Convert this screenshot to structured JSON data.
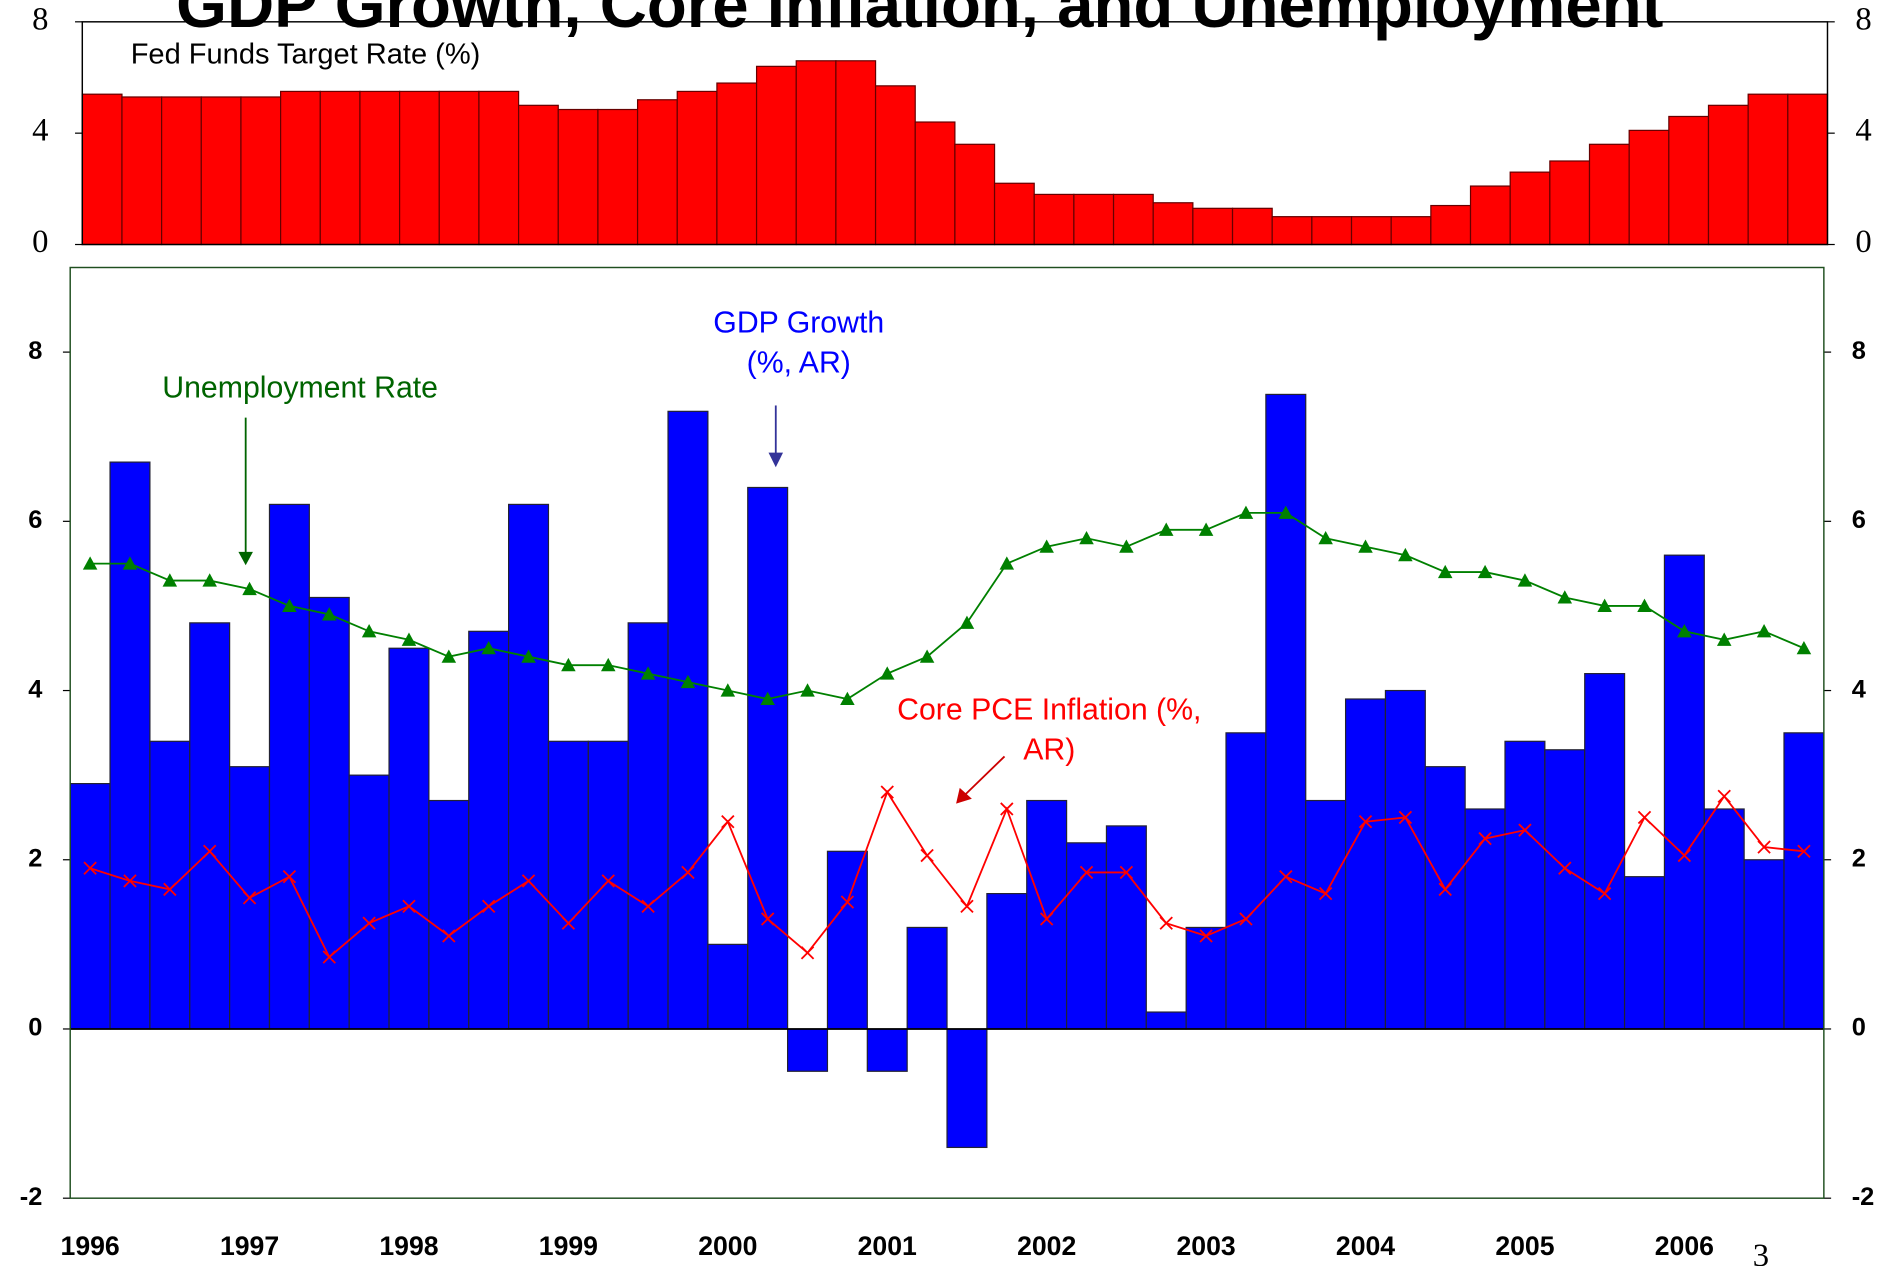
{
  "title": "GDP Growth, Core Inflation, and Unemployment",
  "page_number": "3",
  "chart_data": [
    {
      "type": "bar",
      "title": "Fed Funds Target Rate (%)",
      "color": "#ff0000",
      "values": [
        5.4,
        5.3,
        5.3,
        5.3,
        5.3,
        5.5,
        5.5,
        5.5,
        5.5,
        5.5,
        5.5,
        5.0,
        4.85,
        4.85,
        5.2,
        5.5,
        5.8,
        6.4,
        6.6,
        6.6,
        5.7,
        4.4,
        3.6,
        2.2,
        1.8,
        1.8,
        1.8,
        1.5,
        1.3,
        1.3,
        1.0,
        1.0,
        1.0,
        1.0,
        1.4,
        2.1,
        2.6,
        3.0,
        3.6,
        4.1,
        4.6,
        5.0,
        5.4,
        5.4
      ],
      "ylim": [
        0,
        8
      ],
      "yticks": [
        0,
        4,
        8
      ],
      "y2ticks": [
        0,
        4,
        8
      ]
    },
    {
      "type": "combo",
      "categories": [
        "1996",
        null,
        null,
        null,
        "1997",
        null,
        null,
        null,
        "1998",
        null,
        null,
        null,
        "1999",
        null,
        null,
        null,
        "2000",
        null,
        null,
        null,
        "2001",
        null,
        null,
        null,
        "2002",
        null,
        null,
        null,
        "2003",
        null,
        null,
        null,
        "2004",
        null,
        null,
        null,
        "2005",
        null,
        null,
        null,
        "2006",
        null,
        null,
        null
      ],
      "ylim": [
        -2,
        9
      ],
      "yticks": [
        -2,
        0,
        2,
        4,
        6,
        8
      ],
      "y2ticks": [
        -2,
        0,
        2,
        4,
        6,
        8
      ],
      "series": [
        {
          "type": "bar",
          "label": [
            "GDP Growth",
            "(%, AR)"
          ],
          "color": "#0000ff",
          "values": [
            2.9,
            6.7,
            3.4,
            4.8,
            3.1,
            6.2,
            5.1,
            3.0,
            4.5,
            2.7,
            4.7,
            6.2,
            3.4,
            3.4,
            4.8,
            7.3,
            1.0,
            6.4,
            -0.5,
            2.1,
            -0.5,
            1.2,
            -1.4,
            1.6,
            2.7,
            2.2,
            2.4,
            0.2,
            1.2,
            3.5,
            7.5,
            2.7,
            3.9,
            4.0,
            3.1,
            2.6,
            3.4,
            3.3,
            4.2,
            1.8,
            5.6,
            2.6,
            2.0,
            3.5
          ]
        },
        {
          "type": "line",
          "marker": "triangle",
          "label": [
            "Unemployment Rate"
          ],
          "color": "#008000",
          "values": [
            5.5,
            5.5,
            5.3,
            5.3,
            5.2,
            5.0,
            4.9,
            4.7,
            4.6,
            4.4,
            4.5,
            4.4,
            4.3,
            4.3,
            4.2,
            4.1,
            4.0,
            3.9,
            4.0,
            3.9,
            4.2,
            4.4,
            4.8,
            5.5,
            5.7,
            5.8,
            5.7,
            5.9,
            5.9,
            6.1,
            6.1,
            5.8,
            5.7,
            5.6,
            5.4,
            5.4,
            5.3,
            5.1,
            5.0,
            5.0,
            4.7,
            4.6,
            4.7,
            4.5
          ]
        },
        {
          "type": "line",
          "marker": "x",
          "label": [
            "Core PCE Inflation (%,",
            "AR)"
          ],
          "color": "#ff0000",
          "values": [
            1.9,
            1.75,
            1.65,
            2.1,
            1.55,
            1.8,
            0.85,
            1.25,
            1.45,
            1.1,
            1.45,
            1.75,
            1.25,
            1.75,
            1.45,
            1.85,
            2.45,
            1.3,
            0.9,
            1.5,
            2.8,
            2.05,
            1.45,
            2.6,
            1.3,
            1.85,
            1.85,
            1.25,
            1.1,
            1.3,
            1.8,
            1.6,
            2.45,
            2.5,
            1.65,
            2.25,
            2.35,
            1.9,
            1.6,
            2.5,
            2.05,
            2.75,
            2.15,
            2.1
          ]
        }
      ]
    }
  ]
}
